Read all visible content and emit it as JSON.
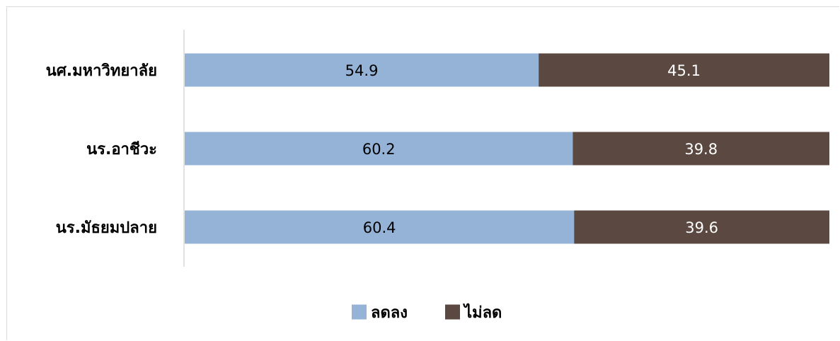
{
  "chart_data": {
    "type": "bar",
    "orientation": "horizontal",
    "stacked": true,
    "categories": [
      "นศ.มหาวิทยาลัย",
      "นร.อาชีวะ",
      "นร.มัธยมปลาย"
    ],
    "series": [
      {
        "name": "ลดลง",
        "values": [
          54.9,
          60.2,
          60.4
        ],
        "color": "#95b3d7",
        "label_color": "#000000"
      },
      {
        "name": "ไม่ลด",
        "values": [
          45.1,
          39.8,
          39.6
        ],
        "color": "#5b4840",
        "label_color": "#ffffff"
      }
    ],
    "xlim": [
      0,
      100
    ],
    "grid": false,
    "legend_position": "bottom"
  }
}
